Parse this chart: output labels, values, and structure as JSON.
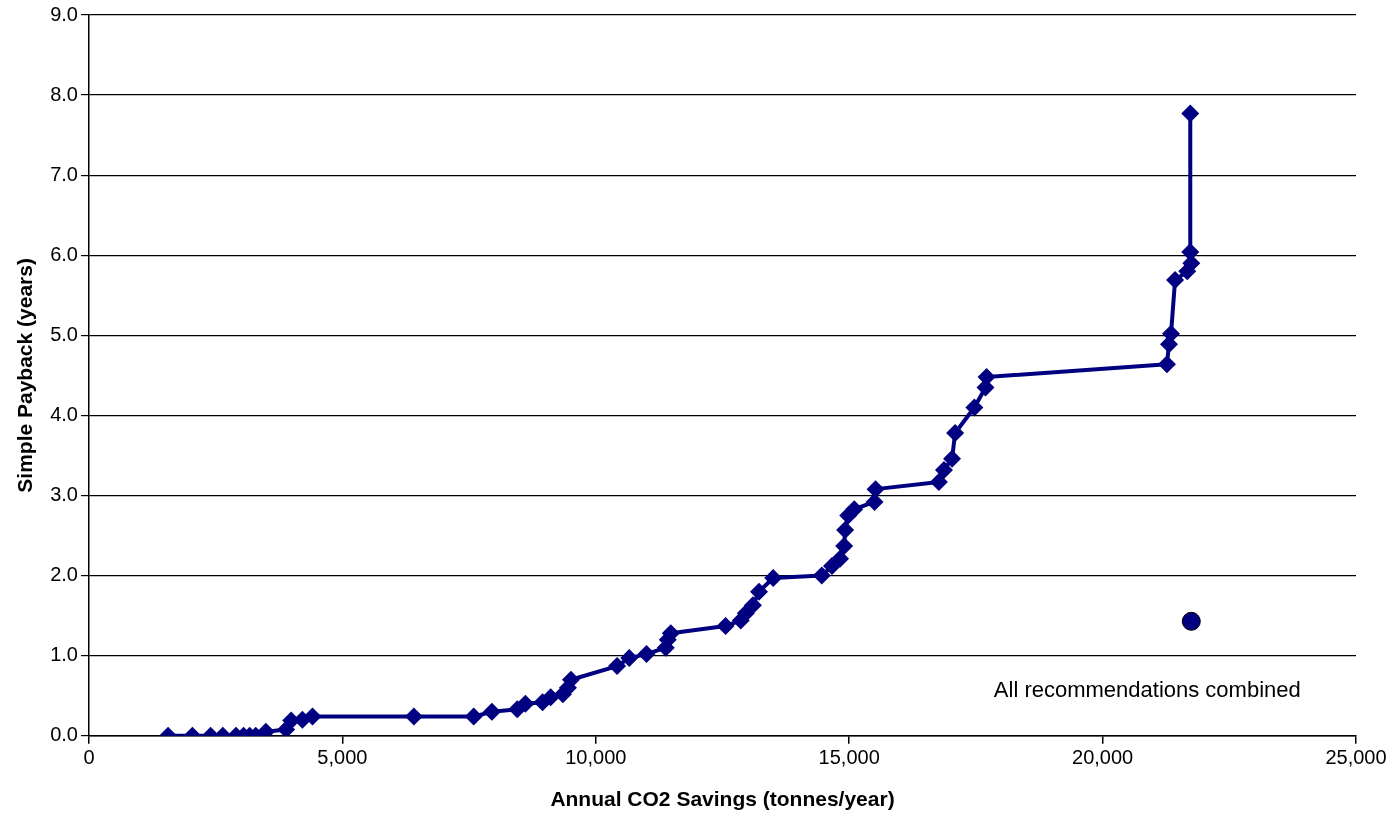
{
  "chart_data": {
    "type": "line",
    "xlabel": "Annual CO2 Savings (tonnes/year)",
    "ylabel": "Simple Payback (years)",
    "xlim": [
      0,
      25000
    ],
    "ylim": [
      0,
      9
    ],
    "xticks": [
      0,
      {
        "value": 5000,
        "label": "5,000"
      },
      {
        "value": 10000,
        "label": "10,000"
      },
      {
        "value": 15000,
        "label": "15,000"
      },
      {
        "value": 20000,
        "label": "20,000"
      },
      {
        "value": 25000,
        "label": "25,000"
      }
    ],
    "yticks": [
      {
        "value": 0,
        "label": "0.0"
      },
      {
        "value": 1,
        "label": "1.0"
      },
      {
        "value": 2,
        "label": "2.0"
      },
      {
        "value": 3,
        "label": "3.0"
      },
      {
        "value": 4,
        "label": "4.0"
      },
      {
        "value": 5,
        "label": "5.0"
      },
      {
        "value": 6,
        "label": "6.0"
      },
      {
        "value": 7,
        "label": "7.0"
      },
      {
        "value": 8,
        "label": "8.0"
      },
      {
        "value": 9,
        "label": "9.0"
      }
    ],
    "grid": "y",
    "legend": false,
    "line_style": "solid",
    "series": [
      {
        "marker": "diamond",
        "color": "#000080",
        "x": [
          1560,
          2040,
          2400,
          2640,
          2900,
          3050,
          3170,
          3290,
          3490,
          3890,
          3990,
          4210,
          4410,
          6410,
          7590,
          7950,
          8450,
          8610,
          8950,
          9110,
          9350,
          9450,
          9510,
          10420,
          10660,
          11000,
          11380,
          11420,
          11480,
          12560,
          12860,
          12960,
          13100,
          13220,
          13500,
          14460,
          14660,
          14820,
          14900,
          14920,
          14980,
          15100,
          15500,
          15520,
          16770,
          16870,
          17030,
          17090,
          17470,
          17690,
          17710,
          21270,
          21310,
          21350,
          21430,
          21670,
          21750,
          21730,
          21730
        ],
        "values": [
          0,
          0,
          0,
          0,
          0,
          0,
          0,
          0,
          0.05,
          0.08,
          0.19,
          0.2,
          0.24,
          0.24,
          0.24,
          0.3,
          0.33,
          0.4,
          0.42,
          0.48,
          0.52,
          0.6,
          0.7,
          0.87,
          0.97,
          1.02,
          1.1,
          1.2,
          1.28,
          1.37,
          1.44,
          1.53,
          1.63,
          1.8,
          1.97,
          2.0,
          2.12,
          2.21,
          2.37,
          2.57,
          2.75,
          2.83,
          2.92,
          3.08,
          3.17,
          3.32,
          3.46,
          3.78,
          4.1,
          4.35,
          4.48,
          4.64,
          4.89,
          5.02,
          5.69,
          5.8,
          5.9,
          6.04,
          7.77
        ]
      },
      {
        "type": "scatter",
        "marker": "circle",
        "color": "#000080",
        "x": [
          21750
        ],
        "values": [
          1.43
        ]
      }
    ],
    "annotations": [
      {
        "text": "All recommendations combined",
        "x": 21750,
        "y": 1.43
      }
    ]
  }
}
